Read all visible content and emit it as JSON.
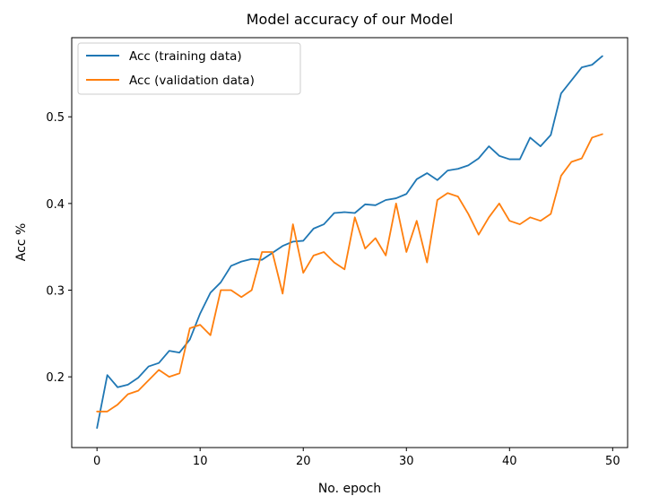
{
  "chart_data": {
    "type": "line",
    "title": "Model accuracy of our Model",
    "xlabel": "No. epoch",
    "ylabel": "Acc %",
    "xlim": [
      -2.45,
      51.45
    ],
    "ylim": [
      0.1184,
      0.5913
    ],
    "xticks": [
      0,
      10,
      20,
      30,
      40,
      50
    ],
    "yticks": [
      0.2,
      0.3,
      0.4,
      0.5
    ],
    "grid": false,
    "legend": "top-left",
    "x": [
      0,
      1,
      2,
      3,
      4,
      5,
      6,
      7,
      8,
      9,
      10,
      11,
      12,
      13,
      14,
      15,
      16,
      17,
      18,
      19,
      20,
      21,
      22,
      23,
      24,
      25,
      26,
      27,
      28,
      29,
      30,
      31,
      32,
      33,
      34,
      35,
      36,
      37,
      38,
      39,
      40,
      41,
      42,
      43,
      44,
      45,
      46,
      47,
      48,
      49
    ],
    "series": [
      {
        "name": "Acc (training data)",
        "color": "#1f77b4",
        "values": [
          0.141,
          0.202,
          0.188,
          0.191,
          0.199,
          0.212,
          0.216,
          0.23,
          0.228,
          0.243,
          0.273,
          0.297,
          0.309,
          0.328,
          0.333,
          0.336,
          0.335,
          0.343,
          0.351,
          0.356,
          0.357,
          0.371,
          0.376,
          0.389,
          0.39,
          0.389,
          0.399,
          0.398,
          0.404,
          0.406,
          0.411,
          0.428,
          0.435,
          0.427,
          0.438,
          0.44,
          0.444,
          0.452,
          0.466,
          0.455,
          0.451,
          0.451,
          0.476,
          0.466,
          0.479,
          0.527,
          0.542,
          0.557,
          0.56,
          0.57
        ]
      },
      {
        "name": "Acc (validation data)",
        "color": "#ff7f0e",
        "values": [
          0.16,
          0.16,
          0.168,
          0.18,
          0.184,
          0.196,
          0.208,
          0.2,
          0.204,
          0.256,
          0.26,
          0.248,
          0.3,
          0.3,
          0.292,
          0.3,
          0.344,
          0.344,
          0.296,
          0.376,
          0.32,
          0.34,
          0.344,
          0.332,
          0.324,
          0.384,
          0.348,
          0.36,
          0.34,
          0.4,
          0.344,
          0.38,
          0.332,
          0.404,
          0.412,
          0.408,
          0.388,
          0.364,
          0.384,
          0.4,
          0.38,
          0.376,
          0.384,
          0.38,
          0.388,
          0.432,
          0.448,
          0.452,
          0.476,
          0.48
        ]
      }
    ]
  }
}
